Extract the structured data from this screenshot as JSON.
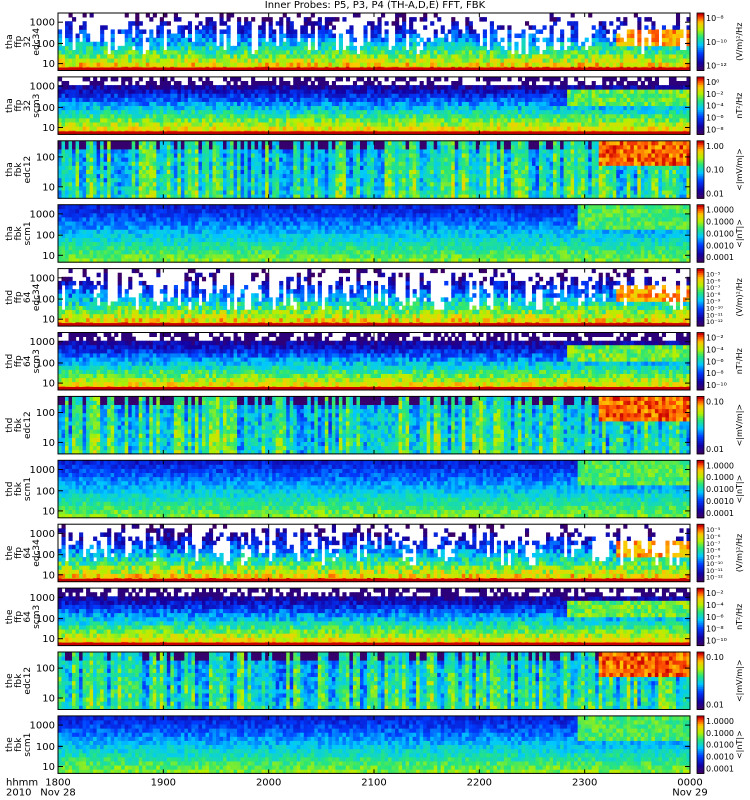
{
  "chart_data": {
    "type": "heatmap",
    "title": "Inner Probes: P5, P3, P4 (TH-A,D,E) FFT, FBK",
    "x_time_labels": [
      "1800",
      "1900",
      "2000",
      "2100",
      "2200",
      "2300",
      "0000"
    ],
    "x_axis_caption_line1": "hhmm",
    "x_axis_caption_line2": "2010",
    "x_date_labels": {
      "start": "Nov 28",
      "end": "Nov 29"
    },
    "panels": [
      {
        "probe": "tha",
        "ylabel": [
          "tha",
          "ffp",
          "32",
          "edc34"
        ],
        "y_ticks": [
          "1000",
          "100",
          "10"
        ],
        "cbar_ticks": [
          "10⁻⁸",
          "10⁻¹⁰",
          "10⁻¹²"
        ],
        "cbar_label": "(V/m)²/Hz"
      },
      {
        "probe": "tha",
        "ylabel": [
          "tha",
          "ffp",
          "32",
          "scm3"
        ],
        "y_ticks": [
          "1000",
          "100",
          "10"
        ],
        "cbar_ticks": [
          "10⁰",
          "10⁻²",
          "10⁻⁴",
          "10⁻⁶",
          "10⁻⁸"
        ],
        "cbar_label": "nT²/Hz"
      },
      {
        "probe": "tha",
        "ylabel": [
          "tha",
          "fbk",
          "edc12"
        ],
        "y_ticks": [
          "100",
          "10"
        ],
        "cbar_ticks": [
          "1.00",
          "0.10",
          "0.01"
        ],
        "cbar_label": "<|mV/m|>"
      },
      {
        "probe": "tha",
        "ylabel": [
          "tha",
          "fbk",
          "scm1"
        ],
        "y_ticks": [
          "1000",
          "100",
          "10"
        ],
        "cbar_ticks": [
          "1.0000",
          "0.1000",
          "0.0100",
          "0.0010",
          "0.0001"
        ],
        "cbar_label": "<|nT|>"
      },
      {
        "probe": "thd",
        "ylabel": [
          "thd",
          "ffp",
          "64",
          "edc34"
        ],
        "y_ticks": [
          "1000",
          "100",
          "10"
        ],
        "cbar_ticks": [
          "10⁻⁵",
          "10⁻⁶",
          "10⁻⁷",
          "10⁻⁸",
          "10⁻⁹",
          "10⁻¹⁰",
          "10⁻¹¹",
          "10⁻¹²"
        ],
        "cbar_label": "(V/m)²/Hz"
      },
      {
        "probe": "thd",
        "ylabel": [
          "thd",
          "ffp",
          "64",
          "scm3"
        ],
        "y_ticks": [
          "1000",
          "100",
          "10"
        ],
        "cbar_ticks": [
          "10⁻²",
          "10⁻⁴",
          "10⁻⁶",
          "10⁻⁸",
          "10⁻¹⁰"
        ],
        "cbar_label": "nT²/Hz"
      },
      {
        "probe": "thd",
        "ylabel": [
          "thd",
          "fbk",
          "edc12"
        ],
        "y_ticks": [
          "100",
          "10"
        ],
        "cbar_ticks": [
          "0.10",
          "0.01"
        ],
        "cbar_label": "<|mV/m|>"
      },
      {
        "probe": "thd",
        "ylabel": [
          "thd",
          "fbk",
          "scm1"
        ],
        "y_ticks": [
          "1000",
          "100",
          "10"
        ],
        "cbar_ticks": [
          "1.0000",
          "0.1000",
          "0.0100",
          "0.0010",
          "0.0001"
        ],
        "cbar_label": "<|nT|>"
      },
      {
        "probe": "the",
        "ylabel": [
          "the",
          "ffp",
          "64",
          "edc34"
        ],
        "y_ticks": [
          "1000",
          "100",
          "10"
        ],
        "cbar_ticks": [
          "10⁻⁵",
          "10⁻⁶",
          "10⁻⁷",
          "10⁻⁸",
          "10⁻⁹",
          "10⁻¹⁰",
          "10⁻¹¹",
          "10⁻¹²"
        ],
        "cbar_label": "(V/m)²/Hz"
      },
      {
        "probe": "the",
        "ylabel": [
          "the",
          "ffp",
          "64",
          "scm3"
        ],
        "y_ticks": [
          "1000",
          "100",
          "10"
        ],
        "cbar_ticks": [
          "10⁻²",
          "10⁻⁴",
          "10⁻⁶",
          "10⁻⁸",
          "10⁻¹⁰"
        ],
        "cbar_label": "nT²/Hz"
      },
      {
        "probe": "the",
        "ylabel": [
          "the",
          "fbk",
          "edc12"
        ],
        "y_ticks": [
          "100",
          "10"
        ],
        "cbar_ticks": [
          "0.10",
          "0.01"
        ],
        "cbar_label": "<|mV/m|>"
      },
      {
        "probe": "the",
        "ylabel": [
          "the",
          "fbk",
          "scm1"
        ],
        "y_ticks": [
          "1000",
          "100",
          "10"
        ],
        "cbar_ticks": [
          "1.0000",
          "0.1000",
          "0.0100",
          "0.0010",
          "0.0001"
        ],
        "cbar_label": "<|nT|>"
      }
    ]
  }
}
